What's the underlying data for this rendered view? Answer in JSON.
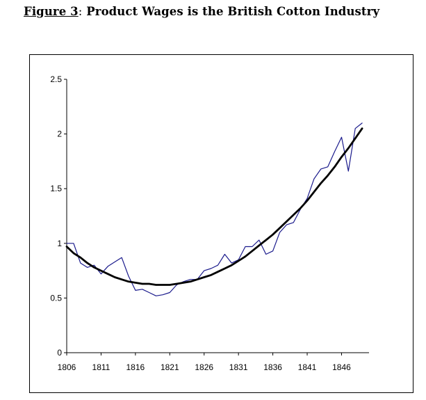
{
  "figure": {
    "label": "Figure 3",
    "separator": ":",
    "title": "Product Wages is the British Cotton Industry"
  },
  "chart_data": {
    "type": "line",
    "title": "Product Wages is the British Cotton Industry",
    "xlabel": "",
    "ylabel": "",
    "xlim": [
      1806,
      1850
    ],
    "ylim": [
      0,
      2.5
    ],
    "x_ticks": [
      1806,
      1811,
      1816,
      1821,
      1826,
      1831,
      1836,
      1841,
      1846
    ],
    "x_tick_labels": [
      "1806",
      "1811",
      "1816",
      "1821",
      "1826",
      "1831",
      "1836",
      "1841",
      "1846"
    ],
    "y_ticks": [
      0,
      0.5,
      1,
      1.5,
      2,
      2.5
    ],
    "y_tick_labels": [
      "0",
      "0.5",
      "1",
      "1.5",
      "2",
      "2.5"
    ],
    "grid": false,
    "legend": "none",
    "series": [
      {
        "id": "actual",
        "color": "#1a1a8c",
        "style": "thin",
        "x": [
          1806,
          1807,
          1808,
          1809,
          1810,
          1811,
          1812,
          1813,
          1814,
          1815,
          1816,
          1817,
          1818,
          1819,
          1820,
          1821,
          1822,
          1823,
          1824,
          1825,
          1826,
          1827,
          1828,
          1829,
          1830,
          1831,
          1832,
          1833,
          1834,
          1835,
          1836,
          1837,
          1838,
          1839,
          1840,
          1841,
          1842,
          1843,
          1844,
          1845,
          1846,
          1847,
          1848,
          1849
        ],
        "y": [
          1.0,
          1.0,
          0.82,
          0.78,
          0.8,
          0.72,
          0.79,
          0.83,
          0.87,
          0.7,
          0.57,
          0.58,
          0.55,
          0.52,
          0.53,
          0.55,
          0.62,
          0.65,
          0.67,
          0.67,
          0.75,
          0.77,
          0.8,
          0.9,
          0.82,
          0.85,
          0.97,
          0.97,
          1.03,
          0.9,
          0.93,
          1.1,
          1.17,
          1.19,
          1.31,
          1.41,
          1.59,
          1.68,
          1.7,
          1.84,
          1.97,
          1.66,
          2.05,
          2.1
        ]
      },
      {
        "id": "trend",
        "color": "#000000",
        "style": "thick",
        "x": [
          1806,
          1807,
          1808,
          1809,
          1810,
          1811,
          1812,
          1813,
          1814,
          1815,
          1816,
          1817,
          1818,
          1819,
          1820,
          1821,
          1822,
          1823,
          1824,
          1825,
          1826,
          1827,
          1828,
          1829,
          1830,
          1831,
          1832,
          1833,
          1834,
          1835,
          1836,
          1837,
          1838,
          1839,
          1840,
          1841,
          1842,
          1843,
          1844,
          1845,
          1846,
          1847,
          1848,
          1849
        ],
        "y": [
          0.97,
          0.91,
          0.87,
          0.82,
          0.78,
          0.75,
          0.72,
          0.69,
          0.67,
          0.65,
          0.64,
          0.63,
          0.63,
          0.62,
          0.62,
          0.62,
          0.63,
          0.64,
          0.65,
          0.67,
          0.69,
          0.71,
          0.74,
          0.77,
          0.8,
          0.84,
          0.88,
          0.93,
          0.98,
          1.03,
          1.08,
          1.14,
          1.2,
          1.26,
          1.32,
          1.39,
          1.47,
          1.55,
          1.62,
          1.7,
          1.79,
          1.87,
          1.96,
          2.05
        ]
      }
    ]
  }
}
